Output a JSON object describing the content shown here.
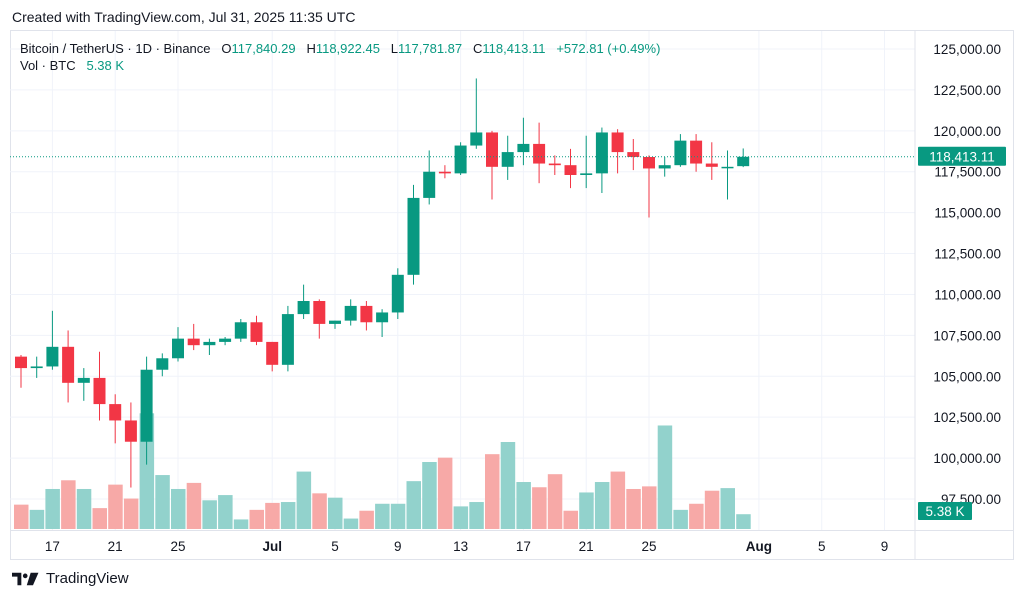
{
  "created_text": "Created with TradingView.com, Jul 31, 2025 11:35 UTC",
  "footer_brand": "TradingView",
  "legend": {
    "symbol": "Bitcoin / TetherUS · 1D · Binance",
    "o_label": "O",
    "o_value": "117,840.29",
    "h_label": "H",
    "h_value": "118,922.45",
    "l_label": "L",
    "l_value": "117,781.87",
    "c_label": "C",
    "c_value": "118,413.11",
    "change": "+572.81 (+0.49%)"
  },
  "volume_legend": {
    "label": "Vol · BTC",
    "value": "5.38 K"
  },
  "colors": {
    "up": "#089981",
    "down": "#f23645",
    "up_vol": "#92d2cc",
    "down_vol": "#f7a9a7",
    "grid": "#f0f3fa",
    "text": "#131722"
  },
  "chart_data": {
    "type": "candlestick",
    "x_tick_labels": [
      "17",
      "21",
      "25",
      "Jul",
      "5",
      "9",
      "13",
      "17",
      "21",
      "25",
      "Aug",
      "5",
      "9"
    ],
    "y_tick_labels": [
      "125,000.00",
      "122,500.00",
      "120,000.00",
      "117,500.00",
      "115,000.00",
      "112,500.00",
      "110,000.00",
      "107,500.00",
      "105,000.00",
      "102,500.00",
      "100,000.00",
      "97,500.00"
    ],
    "ylim": [
      95500,
      126000
    ],
    "last_price_label": "118,413.11",
    "volume_label": "5.38 K",
    "dates": [
      "2025-06-15",
      "2025-06-16",
      "2025-06-17",
      "2025-06-18",
      "2025-06-19",
      "2025-06-20",
      "2025-06-21",
      "2025-06-22",
      "2025-06-23",
      "2025-06-24",
      "2025-06-25",
      "2025-06-26",
      "2025-06-27",
      "2025-06-28",
      "2025-06-29",
      "2025-06-30",
      "2025-07-01",
      "2025-07-02",
      "2025-07-03",
      "2025-07-04",
      "2025-07-05",
      "2025-07-06",
      "2025-07-07",
      "2025-07-08",
      "2025-07-09",
      "2025-07-10",
      "2025-07-11",
      "2025-07-12",
      "2025-07-13",
      "2025-07-14",
      "2025-07-15",
      "2025-07-16",
      "2025-07-17",
      "2025-07-18",
      "2025-07-19",
      "2025-07-20",
      "2025-07-21",
      "2025-07-22",
      "2025-07-23",
      "2025-07-24",
      "2025-07-25",
      "2025-07-26",
      "2025-07-27",
      "2025-07-28",
      "2025-07-29",
      "2025-07-30",
      "2025-07-31"
    ],
    "ohlc": [
      [
        106200,
        106300,
        104300,
        105500
      ],
      [
        105500,
        106200,
        104900,
        105600
      ],
      [
        105600,
        109000,
        105400,
        106800
      ],
      [
        106800,
        107800,
        103400,
        104600
      ],
      [
        104600,
        105500,
        103500,
        104900
      ],
      [
        104900,
        106500,
        102300,
        103300
      ],
      [
        103300,
        103900,
        100900,
        102300
      ],
      [
        102300,
        103400,
        98200,
        101000
      ],
      [
        101000,
        106200,
        99600,
        105400
      ],
      [
        105400,
        106400,
        105000,
        106100
      ],
      [
        106100,
        108000,
        105900,
        107300
      ],
      [
        107300,
        108200,
        106600,
        106900
      ],
      [
        106900,
        107300,
        106300,
        107100
      ],
      [
        107100,
        107400,
        106900,
        107300
      ],
      [
        107300,
        108500,
        107100,
        108300
      ],
      [
        108300,
        108700,
        106900,
        107100
      ],
      [
        107100,
        107100,
        105300,
        105700
      ],
      [
        105700,
        109300,
        105300,
        108800
      ],
      [
        108800,
        110600,
        108500,
        109600
      ],
      [
        109600,
        109700,
        107300,
        108200
      ],
      [
        108200,
        108400,
        107900,
        108400
      ],
      [
        108400,
        109700,
        108100,
        109300
      ],
      [
        109300,
        109600,
        107800,
        108300
      ],
      [
        108300,
        109100,
        107400,
        108900
      ],
      [
        108900,
        111600,
        108500,
        111200
      ],
      [
        111200,
        116700,
        110600,
        115900
      ],
      [
        115900,
        118800,
        115500,
        117500
      ],
      [
        117500,
        117900,
        117100,
        117400
      ],
      [
        117400,
        119300,
        117300,
        119100
      ],
      [
        119100,
        123200,
        118900,
        119900
      ],
      [
        119900,
        120000,
        115800,
        117800
      ],
      [
        117800,
        119700,
        117000,
        118700
      ],
      [
        118700,
        120800,
        117900,
        119200
      ],
      [
        119200,
        120500,
        116800,
        118000
      ],
      [
        118000,
        118500,
        117300,
        117900
      ],
      [
        117900,
        118900,
        116500,
        117300
      ],
      [
        117300,
        119700,
        116500,
        117400
      ],
      [
        117400,
        120200,
        116200,
        119900
      ],
      [
        119900,
        120100,
        117400,
        118700
      ],
      [
        118700,
        119500,
        117600,
        118400
      ],
      [
        118400,
        118500,
        114700,
        117700
      ],
      [
        117700,
        118400,
        117200,
        117900
      ],
      [
        117900,
        119800,
        117800,
        119400
      ],
      [
        119400,
        119800,
        117500,
        118000
      ],
      [
        118000,
        119300,
        117000,
        117800
      ],
      [
        117800,
        118800,
        115800,
        117800
      ],
      [
        117840.29,
        118922.45,
        117781.87,
        118413.11
      ]
    ],
    "volume_relative": [
      0.28,
      0.22,
      0.46,
      0.56,
      0.46,
      0.24,
      0.51,
      0.35,
      1.33,
      0.62,
      0.46,
      0.53,
      0.33,
      0.39,
      0.11,
      0.22,
      0.3,
      0.31,
      0.66,
      0.41,
      0.36,
      0.12,
      0.21,
      0.29,
      0.29,
      0.55,
      0.77,
      0.82,
      0.26,
      0.31,
      0.86,
      1.0,
      0.54,
      0.48,
      0.63,
      0.21,
      0.42,
      0.54,
      0.66,
      0.46,
      0.49,
      1.19,
      0.22,
      0.29,
      0.44,
      0.47,
      0.17
    ]
  }
}
